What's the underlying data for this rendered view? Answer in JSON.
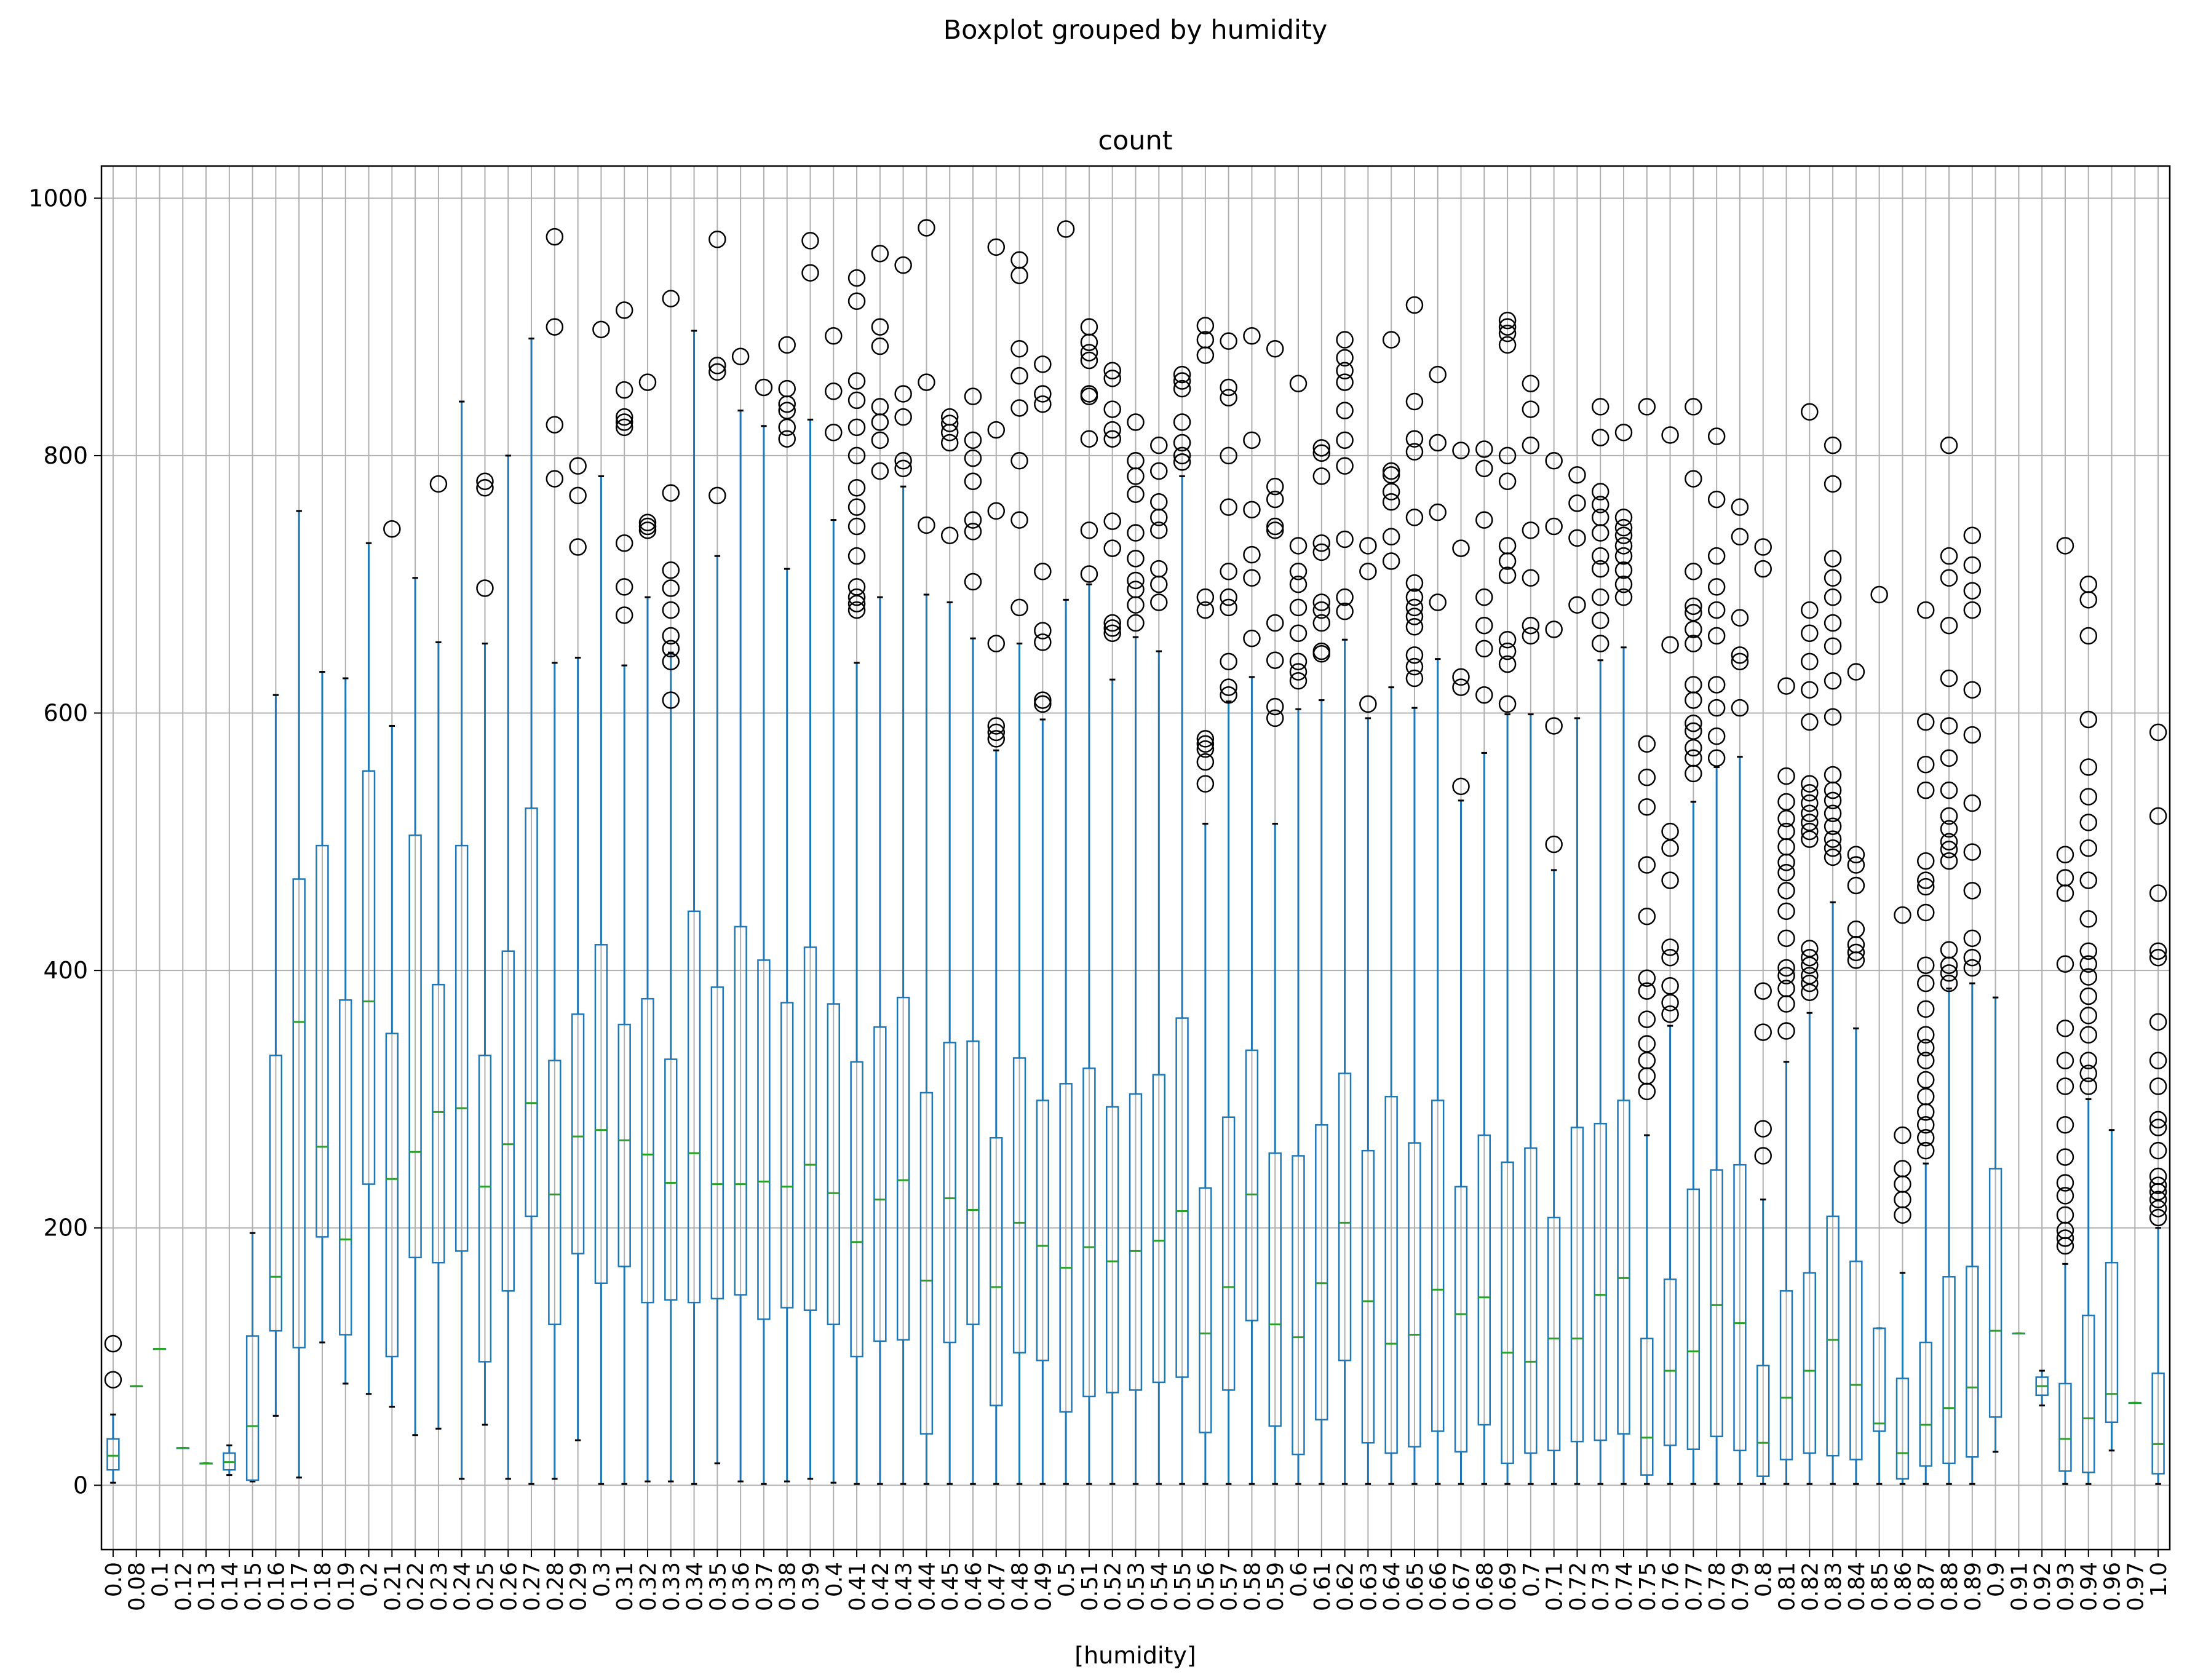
{
  "chart_data": {
    "type": "boxplot",
    "suptitle": "Boxplot grouped by humidity",
    "title": "count",
    "xlabel": "[humidity]",
    "ylabel": "",
    "ylim": [
      -50,
      1025
    ],
    "yticks": [
      0,
      200,
      400,
      600,
      800,
      1000
    ],
    "grid": true,
    "colors": {
      "box": "#1f77b4",
      "median": "#2ca02c",
      "flier": "#000000",
      "grid": "#b0b0b0"
    },
    "categories": [
      "0.0",
      "0.08",
      "0.1",
      "0.12",
      "0.13",
      "0.14",
      "0.15",
      "0.16",
      "0.17",
      "0.18",
      "0.19",
      "0.2",
      "0.21",
      "0.22",
      "0.23",
      "0.24",
      "0.25",
      "0.26",
      "0.27",
      "0.28",
      "0.29",
      "0.3",
      "0.31",
      "0.32",
      "0.33",
      "0.34",
      "0.35",
      "0.36",
      "0.37",
      "0.38",
      "0.39",
      "0.4",
      "0.41",
      "0.42",
      "0.43",
      "0.44",
      "0.45",
      "0.46",
      "0.47",
      "0.48",
      "0.49",
      "0.5",
      "0.51",
      "0.52",
      "0.53",
      "0.54",
      "0.55",
      "0.56",
      "0.57",
      "0.58",
      "0.59",
      "0.6",
      "0.61",
      "0.62",
      "0.63",
      "0.64",
      "0.65",
      "0.66",
      "0.67",
      "0.68",
      "0.69",
      "0.7",
      "0.71",
      "0.72",
      "0.73",
      "0.74",
      "0.75",
      "0.76",
      "0.77",
      "0.78",
      "0.79",
      "0.8",
      "0.81",
      "0.82",
      "0.83",
      "0.84",
      "0.85",
      "0.86",
      "0.87",
      "0.88",
      "0.89",
      "0.9",
      "0.91",
      "0.92",
      "0.93",
      "0.94",
      "0.96",
      "0.97",
      "1.0"
    ],
    "boxes": [
      [
        2,
        12,
        23,
        36,
        55,
        [
          82,
          110
        ]
      ],
      [
        77,
        77,
        77,
        77,
        77,
        []
      ],
      [
        106,
        106,
        106,
        106,
        106,
        []
      ],
      [
        29,
        29,
        29,
        29,
        29,
        []
      ],
      [
        17,
        17,
        17,
        17,
        17,
        []
      ],
      [
        8,
        12,
        18,
        25,
        31,
        []
      ],
      [
        3,
        4,
        46,
        116,
        196,
        []
      ],
      [
        54,
        120,
        162,
        334,
        614,
        []
      ],
      [
        6,
        107,
        360,
        471,
        757,
        []
      ],
      [
        111,
        193,
        263,
        497,
        632,
        []
      ],
      [
        79,
        117,
        191,
        377,
        627,
        []
      ],
      [
        71,
        234,
        376,
        555,
        732,
        []
      ],
      [
        61,
        100,
        238,
        351,
        590,
        [
          743
        ]
      ],
      [
        39,
        177,
        259,
        505,
        705,
        []
      ],
      [
        44,
        173,
        290,
        389,
        655,
        [
          778
        ]
      ],
      [
        5,
        182,
        293,
        497,
        842,
        []
      ],
      [
        47,
        96,
        232,
        334,
        654,
        [
          697,
          775,
          780
        ]
      ],
      [
        5,
        151,
        265,
        415,
        800,
        []
      ],
      [
        1,
        209,
        297,
        526,
        891,
        []
      ],
      [
        5,
        125,
        226,
        330,
        639,
        [
          782,
          824,
          900,
          970
        ]
      ],
      [
        35,
        180,
        271,
        366,
        643,
        [
          729,
          769,
          792
        ]
      ],
      [
        1,
        157,
        276,
        420,
        784,
        [
          898
        ]
      ],
      [
        1,
        170,
        268,
        358,
        637,
        [
          676,
          698,
          732,
          822,
          826,
          830,
          851,
          913
        ]
      ],
      [
        3,
        142,
        257,
        378,
        690,
        [
          742,
          745,
          748,
          857
        ]
      ],
      [
        3,
        144,
        235,
        331,
        647,
        [
          610,
          640,
          650,
          660,
          680,
          697,
          711,
          771,
          922
        ]
      ],
      [
        1,
        142,
        258,
        446,
        897,
        []
      ],
      [
        17,
        145,
        234,
        387,
        722,
        [
          769,
          865,
          870,
          968
        ]
      ],
      [
        3,
        148,
        234,
        434,
        835,
        [
          877
        ]
      ],
      [
        1,
        129,
        236,
        408,
        823,
        [
          853
        ]
      ],
      [
        3,
        138,
        232,
        375,
        712,
        [
          813,
          822,
          835,
          840,
          852,
          886
        ]
      ],
      [
        5,
        136,
        249,
        418,
        828,
        [
          942,
          967
        ]
      ],
      [
        2,
        125,
        227,
        374,
        750,
        [
          818,
          850,
          893
        ]
      ],
      [
        1,
        100,
        189,
        329,
        639,
        [
          680,
          685,
          690,
          698,
          722,
          745,
          760,
          775,
          800,
          822,
          843,
          858,
          920,
          938
        ]
      ],
      [
        1,
        112,
        222,
        356,
        690,
        [
          788,
          812,
          826,
          838,
          885,
          900,
          957
        ]
      ],
      [
        1,
        113,
        237,
        379,
        776,
        [
          790,
          796,
          830,
          848,
          948
        ]
      ],
      [
        1,
        40,
        159,
        305,
        692,
        [
          746,
          857,
          977
        ]
      ],
      [
        1,
        111,
        223,
        344,
        686,
        [
          738,
          810,
          818,
          825,
          830
        ]
      ],
      [
        1,
        125,
        214,
        345,
        658,
        [
          702,
          741,
          750,
          780,
          798,
          812,
          846
        ]
      ],
      [
        1,
        62,
        154,
        270,
        571,
        [
          580,
          585,
          590,
          654,
          757,
          820,
          962
        ]
      ],
      [
        1,
        103,
        204,
        332,
        654,
        [
          682,
          750,
          796,
          837,
          862,
          883,
          940,
          952
        ]
      ],
      [
        1,
        97,
        186,
        299,
        595,
        [
          607,
          610,
          655,
          664,
          710,
          840,
          848,
          871
        ]
      ],
      [
        1,
        57,
        169,
        312,
        688,
        [
          976
        ]
      ],
      [
        1,
        69,
        185,
        324,
        700,
        [
          708,
          742,
          813,
          846,
          848,
          874,
          880,
          888,
          900
        ]
      ],
      [
        1,
        72,
        174,
        294,
        626,
        [
          662,
          666,
          670,
          728,
          749,
          813,
          820,
          836,
          860,
          866
        ]
      ],
      [
        1,
        74,
        182,
        304,
        659,
        [
          670,
          684,
          696,
          703,
          720,
          740,
          770,
          784,
          796,
          826
        ]
      ],
      [
        1,
        80,
        190,
        319,
        648,
        [
          686,
          700,
          712,
          742,
          752,
          764,
          788,
          808
        ]
      ],
      [
        1,
        84,
        213,
        363,
        784,
        [
          795,
          800,
          810,
          826,
          852,
          858,
          863
        ]
      ],
      [
        1,
        41,
        118,
        231,
        514,
        [
          545,
          562,
          572,
          576,
          580,
          680,
          690,
          878,
          890,
          901
        ]
      ],
      [
        1,
        74,
        154,
        286,
        609,
        [
          614,
          620,
          640,
          682,
          690,
          710,
          760,
          800,
          845,
          853,
          889
        ]
      ],
      [
        1,
        128,
        226,
        338,
        628,
        [
          658,
          705,
          723,
          758,
          812,
          893
        ]
      ],
      [
        1,
        46,
        125,
        258,
        514,
        [
          596,
          605,
          641,
          670,
          742,
          745,
          766,
          776,
          883
        ]
      ],
      [
        1,
        24,
        115,
        256,
        603,
        [
          625,
          632,
          640,
          662,
          682,
          700,
          710,
          730,
          856
        ]
      ],
      [
        1,
        51,
        157,
        280,
        610,
        [
          646,
          648,
          670,
          680,
          686,
          725,
          732,
          784,
          802,
          806
        ]
      ],
      [
        1,
        97,
        204,
        320,
        657,
        [
          679,
          690,
          735,
          792,
          812,
          835,
          857,
          866,
          876,
          890
        ]
      ],
      [
        1,
        33,
        143,
        260,
        596,
        [
          607,
          710,
          730
        ]
      ],
      [
        1,
        25,
        110,
        302,
        620,
        [
          718,
          737,
          764,
          772,
          785,
          788,
          890
        ]
      ],
      [
        1,
        30,
        117,
        266,
        604,
        [
          627,
          636,
          645,
          667,
          675,
          682,
          690,
          701,
          752,
          803,
          813,
          842,
          917
        ]
      ],
      [
        1,
        42,
        152,
        299,
        642,
        [
          686,
          756,
          810,
          863
        ]
      ],
      [
        1,
        26,
        133,
        232,
        532,
        [
          543,
          620,
          628,
          728,
          804
        ]
      ],
      [
        1,
        47,
        146,
        272,
        569,
        [
          614,
          650,
          668,
          690,
          750,
          790,
          805
        ]
      ],
      [
        1,
        17,
        103,
        251,
        599,
        [
          607,
          638,
          648,
          657,
          707,
          718,
          730,
          780,
          800,
          886,
          895,
          900,
          905
        ]
      ],
      [
        1,
        25,
        96,
        262,
        599,
        [
          660,
          668,
          705,
          742,
          808,
          836,
          856
        ]
      ],
      [
        1,
        27,
        114,
        208,
        478,
        [
          498,
          590,
          665,
          745,
          796
        ]
      ],
      [
        1,
        34,
        114,
        278,
        596,
        [
          684,
          736,
          763,
          785
        ]
      ],
      [
        1,
        35,
        148,
        281,
        641,
        [
          654,
          672,
          690,
          712,
          722,
          740,
          752,
          762,
          772,
          814,
          838
        ]
      ],
      [
        1,
        40,
        161,
        299,
        651,
        [
          690,
          700,
          711,
          722,
          730,
          738,
          744,
          752,
          818
        ]
      ],
      [
        1,
        8,
        37,
        114,
        272,
        [
          306,
          318,
          330,
          343,
          362,
          384,
          394,
          442,
          482,
          527,
          550,
          576,
          838
        ]
      ],
      [
        1,
        31,
        89,
        160,
        357,
        [
          366,
          375,
          388,
          410,
          418,
          470,
          495,
          508,
          653,
          816
        ]
      ],
      [
        1,
        28,
        104,
        230,
        531,
        [
          553,
          565,
          573,
          586,
          592,
          610,
          622,
          654,
          665,
          678,
          683,
          710,
          782,
          838
        ]
      ],
      [
        1,
        38,
        140,
        245,
        558,
        [
          565,
          582,
          604,
          622,
          660,
          680,
          698,
          722,
          766,
          815
        ]
      ],
      [
        1,
        27,
        126,
        249,
        566,
        [
          604,
          640,
          645,
          674,
          737,
          760
        ]
      ],
      [
        1,
        7,
        33,
        93,
        222,
        [
          256,
          277,
          352,
          384,
          712,
          729
        ]
      ],
      [
        1,
        20,
        68,
        151,
        329,
        [
          353,
          374,
          386,
          396,
          402,
          425,
          446,
          462,
          476,
          484,
          496,
          508,
          518,
          531,
          551,
          621
        ]
      ],
      [
        1,
        25,
        89,
        165,
        367,
        [
          383,
          390,
          396,
          404,
          410,
          417,
          502,
          508,
          515,
          522,
          530,
          538,
          545,
          593,
          618,
          640,
          662,
          680,
          834
        ]
      ],
      [
        1,
        23,
        113,
        209,
        453,
        [
          488,
          495,
          502,
          512,
          522,
          532,
          540,
          552,
          597,
          625,
          652,
          670,
          690,
          705,
          720,
          778,
          808
        ]
      ],
      [
        1,
        20,
        78,
        174,
        355,
        [
          408,
          414,
          420,
          432,
          466,
          482,
          490,
          632
        ]
      ],
      [
        1,
        42,
        48,
        122,
        122,
        [
          692
        ]
      ],
      [
        1,
        5,
        25,
        83,
        165,
        [
          210,
          222,
          234,
          246,
          272,
          443
        ]
      ],
      [
        1,
        15,
        47,
        111,
        250,
        [
          260,
          270,
          280,
          290,
          302,
          315,
          330,
          340,
          350,
          370,
          390,
          404,
          445,
          465,
          470,
          485,
          540,
          560,
          593,
          680
        ]
      ],
      [
        1,
        17,
        60,
        162,
        386,
        [
          390,
          398,
          404,
          416,
          485,
          494,
          500,
          510,
          520,
          540,
          565,
          590,
          627,
          668,
          705,
          722,
          808
        ]
      ],
      [
        1,
        22,
        76,
        170,
        390,
        [
          402,
          410,
          425,
          462,
          492,
          530,
          583,
          618,
          680,
          695,
          715,
          738
        ]
      ],
      [
        26,
        53,
        120,
        246,
        379,
        []
      ],
      [
        118,
        118,
        118,
        118,
        118,
        []
      ],
      [
        62,
        70,
        77,
        84,
        89,
        []
      ],
      [
        1,
        11,
        36,
        79,
        172,
        [
          186,
          192,
          198,
          210,
          225,
          235,
          255,
          280,
          310,
          330,
          355,
          405,
          460,
          472,
          490,
          730
        ]
      ],
      [
        1,
        10,
        52,
        132,
        300,
        [
          310,
          320,
          330,
          350,
          365,
          380,
          395,
          405,
          415,
          440,
          470,
          495,
          515,
          535,
          558,
          595,
          660,
          688,
          700
        ]
      ],
      [
        27,
        49,
        71,
        173,
        276,
        []
      ],
      [
        64,
        64,
        64,
        64,
        64,
        []
      ],
      [
        1,
        9,
        32,
        87,
        200,
        [
          208,
          215,
          222,
          228,
          233,
          240,
          260,
          278,
          284,
          310,
          330,
          360,
          410,
          415,
          460,
          520,
          585
        ]
      ]
    ]
  }
}
